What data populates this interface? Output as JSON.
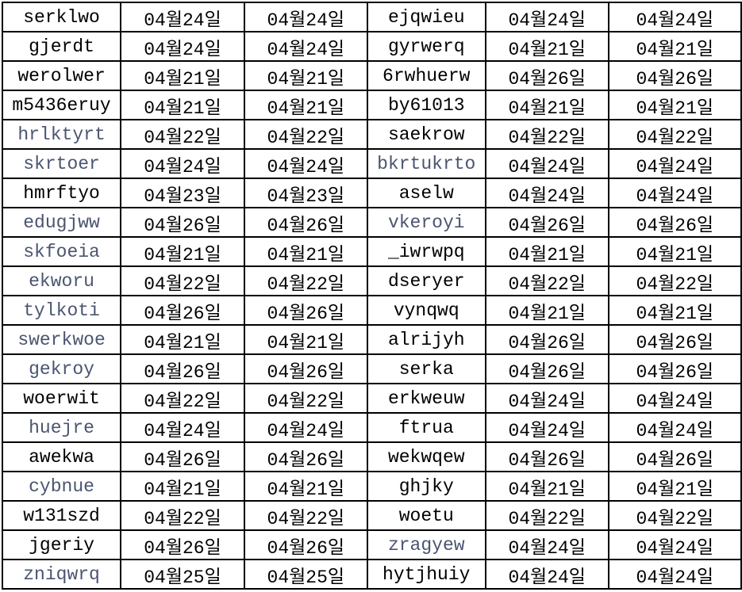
{
  "colors": {
    "text": "#000000",
    "muted_text": "#4a5570",
    "grid": "#000000"
  },
  "rows": [
    {
      "a": "serklwo",
      "b": "04월24일",
      "c": "04월24일",
      "d": "ejqwieu",
      "e": "04월24일",
      "f": "04월24일",
      "a_muted": false,
      "d_muted": false
    },
    {
      "a": "gjerdt",
      "b": "04월24일",
      "c": "04월24일",
      "d": "gyrwerq",
      "e": "04월21일",
      "f": "04월21일",
      "a_muted": false,
      "d_muted": false
    },
    {
      "a": "werolwer",
      "b": "04월21일",
      "c": "04월21일",
      "d": "6rwhuerw",
      "e": "04월26일",
      "f": "04월26일",
      "a_muted": false,
      "d_muted": false
    },
    {
      "a": "m5436eruy",
      "b": "04월21일",
      "c": "04월21일",
      "d": "by61013",
      "e": "04월21일",
      "f": "04월21일",
      "a_muted": false,
      "d_muted": false
    },
    {
      "a": "hrlktyrt",
      "b": "04월22일",
      "c": "04월22일",
      "d": "saekrow",
      "e": "04월22일",
      "f": "04월22일",
      "a_muted": true,
      "d_muted": false
    },
    {
      "a": "skrtoer",
      "b": "04월24일",
      "c": "04월24일",
      "d": "bkrtukrto",
      "e": "04월24일",
      "f": "04월24일",
      "a_muted": true,
      "d_muted": true
    },
    {
      "a": "hmrftyo",
      "b": "04월23일",
      "c": "04월23일",
      "d": "aselw",
      "e": "04월24일",
      "f": "04월24일",
      "a_muted": false,
      "d_muted": false
    },
    {
      "a": "edugjww",
      "b": "04월26일",
      "c": "04월26일",
      "d": "vkeroyi",
      "e": "04월26일",
      "f": "04월26일",
      "a_muted": true,
      "d_muted": true
    },
    {
      "a": "skfoeia",
      "b": "04월21일",
      "c": "04월21일",
      "d": "_iwrwpq",
      "e": "04월21일",
      "f": "04월21일",
      "a_muted": true,
      "d_muted": false
    },
    {
      "a": "ekworu",
      "b": "04월22일",
      "c": "04월22일",
      "d": "dseryer",
      "e": "04월22일",
      "f": "04월22일",
      "a_muted": true,
      "d_muted": false
    },
    {
      "a": "tylkoti",
      "b": "04월26일",
      "c": "04월26일",
      "d": "vynqwq",
      "e": "04월21일",
      "f": "04월21일",
      "a_muted": true,
      "d_muted": false
    },
    {
      "a": "swerkwoe",
      "b": "04월21일",
      "c": "04월21일",
      "d": "alrijyh",
      "e": "04월26일",
      "f": "04월26일",
      "a_muted": true,
      "d_muted": false
    },
    {
      "a": "gekroy",
      "b": "04월26일",
      "c": "04월26일",
      "d": "serka",
      "e": "04월26일",
      "f": "04월26일",
      "a_muted": true,
      "d_muted": false
    },
    {
      "a": "woerwit",
      "b": "04월22일",
      "c": "04월22일",
      "d": "erkweuw",
      "e": "04월24일",
      "f": "04월24일",
      "a_muted": false,
      "d_muted": false
    },
    {
      "a": "huejre",
      "b": "04월24일",
      "c": "04월24일",
      "d": "ftrua",
      "e": "04월24일",
      "f": "04월24일",
      "a_muted": true,
      "d_muted": false
    },
    {
      "a": "awekwa",
      "b": "04월26일",
      "c": "04월26일",
      "d": "wekwqew",
      "e": "04월26일",
      "f": "04월26일",
      "a_muted": false,
      "d_muted": false
    },
    {
      "a": "cybnue",
      "b": "04월21일",
      "c": "04월21일",
      "d": "ghjky",
      "e": "04월21일",
      "f": "04월21일",
      "a_muted": true,
      "d_muted": false
    },
    {
      "a": "w131szd",
      "b": "04월22일",
      "c": "04월22일",
      "d": "woetu",
      "e": "04월22일",
      "f": "04월22일",
      "a_muted": false,
      "d_muted": false
    },
    {
      "a": "jgeriy",
      "b": "04월26일",
      "c": "04월26일",
      "d": "zragyew",
      "e": "04월24일",
      "f": "04월24일",
      "a_muted": false,
      "d_muted": true
    },
    {
      "a": "zniqwrq",
      "b": "04월25일",
      "c": "04월25일",
      "d": "hytjhuiy",
      "e": "04월24일",
      "f": "04월24일",
      "a_muted": true,
      "d_muted": false
    }
  ]
}
